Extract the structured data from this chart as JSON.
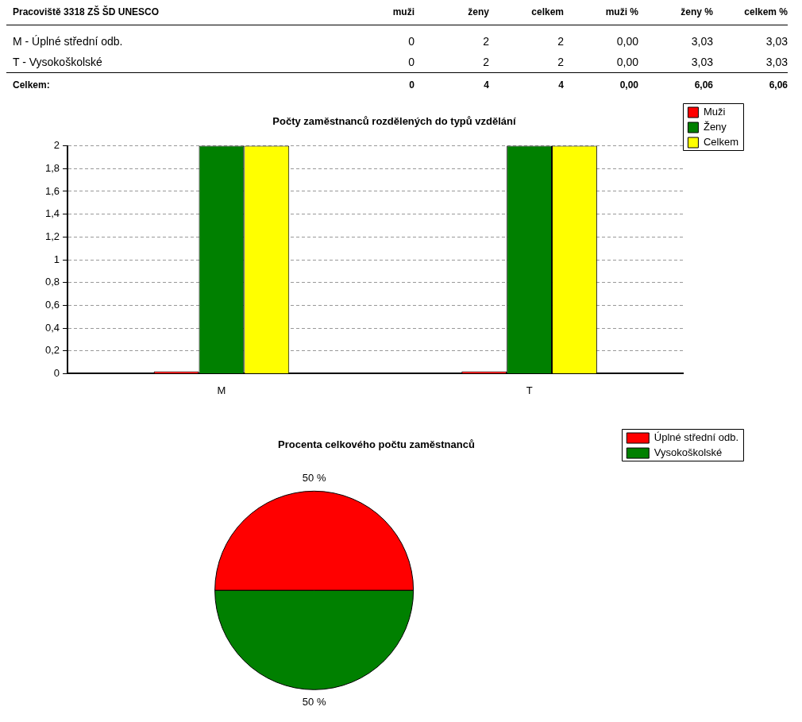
{
  "chart_data": [
    {
      "type": "other",
      "title": "Pracoviště 3318 ZŠ ŠD UNESCO",
      "categories": [
        "muži",
        "ženy",
        "celkem",
        "muži %",
        "ženy %",
        "celkem %"
      ],
      "series": [
        {
          "name": "M - Úplné střední odb.",
          "values": [
            0,
            2,
            2,
            0,
            3.03,
            3.03
          ],
          "value_labels": [
            "0",
            "2",
            "2",
            "0,00",
            "3,03",
            "3,03"
          ]
        },
        {
          "name": "T - Vysokoškolské",
          "values": [
            0,
            2,
            2,
            0,
            3.03,
            3.03
          ],
          "value_labels": [
            "0",
            "2",
            "2",
            "0,00",
            "3,03",
            "3,03"
          ]
        },
        {
          "name": "Celkem:",
          "values": [
            0,
            4,
            4,
            0,
            6.06,
            6.06
          ],
          "value_labels": [
            "0",
            "4",
            "4",
            "0,00",
            "6,06",
            "6,06"
          ]
        }
      ]
    },
    {
      "type": "bar",
      "title": "Počty zaměstnanců rozdělených do typů vzdělání",
      "categories": [
        "M",
        "T"
      ],
      "series": [
        {
          "name": "Muži",
          "color": "#ff0000",
          "values": [
            0,
            0
          ]
        },
        {
          "name": "Ženy",
          "color": "#008000",
          "values": [
            2,
            2
          ]
        },
        {
          "name": "Celkem",
          "color": "#ffff00",
          "values": [
            2,
            2
          ]
        }
      ],
      "ylim": [
        0,
        2
      ],
      "yticks": [
        0,
        {
          "value": 0.2,
          "label": "0,2"
        },
        {
          "value": 0.4,
          "label": "0,4"
        },
        {
          "value": 0.6,
          "label": "0,6"
        },
        {
          "value": 0.8,
          "label": "0,8"
        },
        1,
        {
          "value": 1.2,
          "label": "1,2"
        },
        {
          "value": 1.4,
          "label": "1,4"
        },
        {
          "value": 1.6,
          "label": "1,6"
        },
        {
          "value": 1.8,
          "label": "1,8"
        },
        2
      ],
      "grid": "y",
      "legend": "top right"
    },
    {
      "type": "pie",
      "title": "Procenta celkového počtu zaměstnanců",
      "categories": [
        "Úplné střední odb.",
        "Vysokoškolské"
      ],
      "values": [
        50,
        50
      ],
      "colors": [
        "#ff0000",
        "#008000"
      ],
      "value_labels": [
        "50 %",
        "50 %"
      ],
      "legend": "top right"
    }
  ]
}
